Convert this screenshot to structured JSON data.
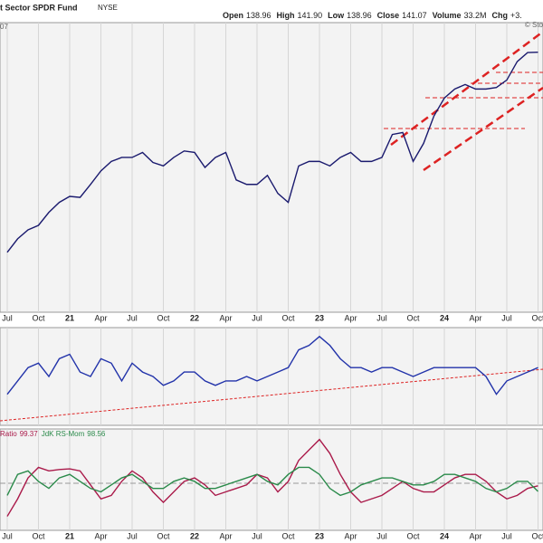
{
  "header": {
    "title": "t Sector SPDR Fund",
    "exchange": "NYSE",
    "quote": [
      {
        "label": "Open",
        "value": "138.96"
      },
      {
        "label": "High",
        "value": "141.90"
      },
      {
        "label": "Low",
        "value": "138.96"
      },
      {
        "label": "Close",
        "value": "141.07"
      },
      {
        "label": "Volume",
        "value": "33.2M"
      },
      {
        "label": "Chg",
        "value": "+3."
      }
    ],
    "watermark": "© Sto",
    "corner": "07"
  },
  "chart_data": [
    {
      "type": "line",
      "categories": [
        "Jul",
        null,
        null,
        "Oct",
        null,
        null,
        "21",
        null,
        null,
        "Apr",
        null,
        null,
        "Jul",
        null,
        null,
        "Oct",
        null,
        null,
        "22",
        null,
        null,
        "Apr",
        null,
        null,
        "Jul",
        null,
        null,
        "Oct",
        null,
        null,
        "23",
        null,
        null,
        "Apr",
        null,
        null,
        "Jul",
        null,
        null,
        "Oct",
        null,
        null,
        "24",
        null,
        null,
        "Apr",
        null,
        null,
        "Jul",
        null,
        null,
        "Oct"
      ],
      "series": [
        {
          "color": "#1a1a6e",
          "values": [
            101,
            103.7,
            105.5,
            106.4,
            109,
            111,
            112.2,
            112,
            114.6,
            117.3,
            119.2,
            120,
            120,
            121,
            119,
            118.3,
            120,
            121.3,
            121,
            118,
            120,
            121,
            115.5,
            114.6,
            114.6,
            116.4,
            112.8,
            111,
            118.3,
            119.2,
            119.2,
            118.3,
            120,
            121,
            119.2,
            119.2,
            120,
            124.6,
            125,
            119.2,
            122.8,
            128.3,
            131.9,
            133.7,
            134.6,
            133.7,
            133.7,
            134,
            135.5,
            139.2,
            141,
            141.07
          ]
        }
      ],
      "ylim": [
        89,
        147
      ],
      "grid": true
    },
    {
      "type": "line",
      "series": [
        {
          "color": "#2233aa",
          "values": [
            6,
            9,
            12,
            13,
            10,
            14,
            15,
            11,
            10,
            14,
            13,
            9,
            13,
            11,
            10,
            8,
            9,
            11,
            11,
            9,
            8,
            9,
            9,
            10,
            9,
            10,
            11,
            12,
            16,
            17,
            19,
            17,
            14,
            12,
            12,
            11,
            12,
            12,
            11,
            10,
            11,
            12,
            12,
            12,
            12,
            12,
            10,
            6,
            9,
            10,
            11,
            12
          ]
        }
      ],
      "ylim": [
        -1,
        21
      ],
      "grid": true
    },
    {
      "type": "line",
      "categories": [
        "Jul",
        null,
        null,
        "Oct",
        null,
        null,
        "21",
        null,
        null,
        "Apr",
        null,
        null,
        "Jul",
        null,
        null,
        "Oct",
        null,
        null,
        "22",
        null,
        null,
        "Apr",
        null,
        null,
        "Jul",
        null,
        null,
        "Oct",
        null,
        null,
        "23",
        null,
        null,
        "Apr",
        null,
        null,
        "Jul",
        null,
        null,
        "Oct",
        null,
        null,
        "24",
        null,
        null,
        "Apr",
        null,
        null,
        "Jul",
        null,
        null,
        "Oct"
      ],
      "series": [
        {
          "name": "Ratio",
          "color": "#aa1a4a",
          "values": [
            95,
            97.5,
            100.5,
            102,
            101.5,
            101.7,
            101.8,
            101.5,
            99.5,
            97.5,
            98,
            100,
            101.5,
            100.5,
            98.5,
            97,
            98.5,
            100,
            100.5,
            99.5,
            98,
            98.5,
            99,
            99.5,
            101,
            100.5,
            98.5,
            100,
            103,
            104.5,
            106,
            104,
            101,
            98.5,
            97,
            97.5,
            98,
            99,
            100,
            99,
            98.5,
            98.5,
            99.5,
            100.5,
            101,
            101,
            100,
            98.5,
            97.5,
            98,
            99,
            99.37
          ]
        },
        {
          "name": "JdK RS-Mom",
          "color": "#2a8a4a",
          "values": [
            98,
            101,
            101.5,
            100,
            99,
            100.5,
            101,
            100,
            99,
            98.5,
            99.5,
            100.5,
            101,
            100,
            99,
            99,
            100,
            100.5,
            100,
            99,
            99,
            99.5,
            100,
            100.5,
            101,
            100,
            99.5,
            101,
            102,
            102,
            101,
            99,
            98,
            98.5,
            99.5,
            100,
            100.5,
            100.5,
            100,
            99.5,
            99.5,
            100,
            101,
            101,
            100.5,
            100,
            99,
            98.5,
            99,
            100,
            100,
            98.56
          ]
        }
      ],
      "ylim": [
        93,
        107.5
      ],
      "grid": true
    }
  ]
}
